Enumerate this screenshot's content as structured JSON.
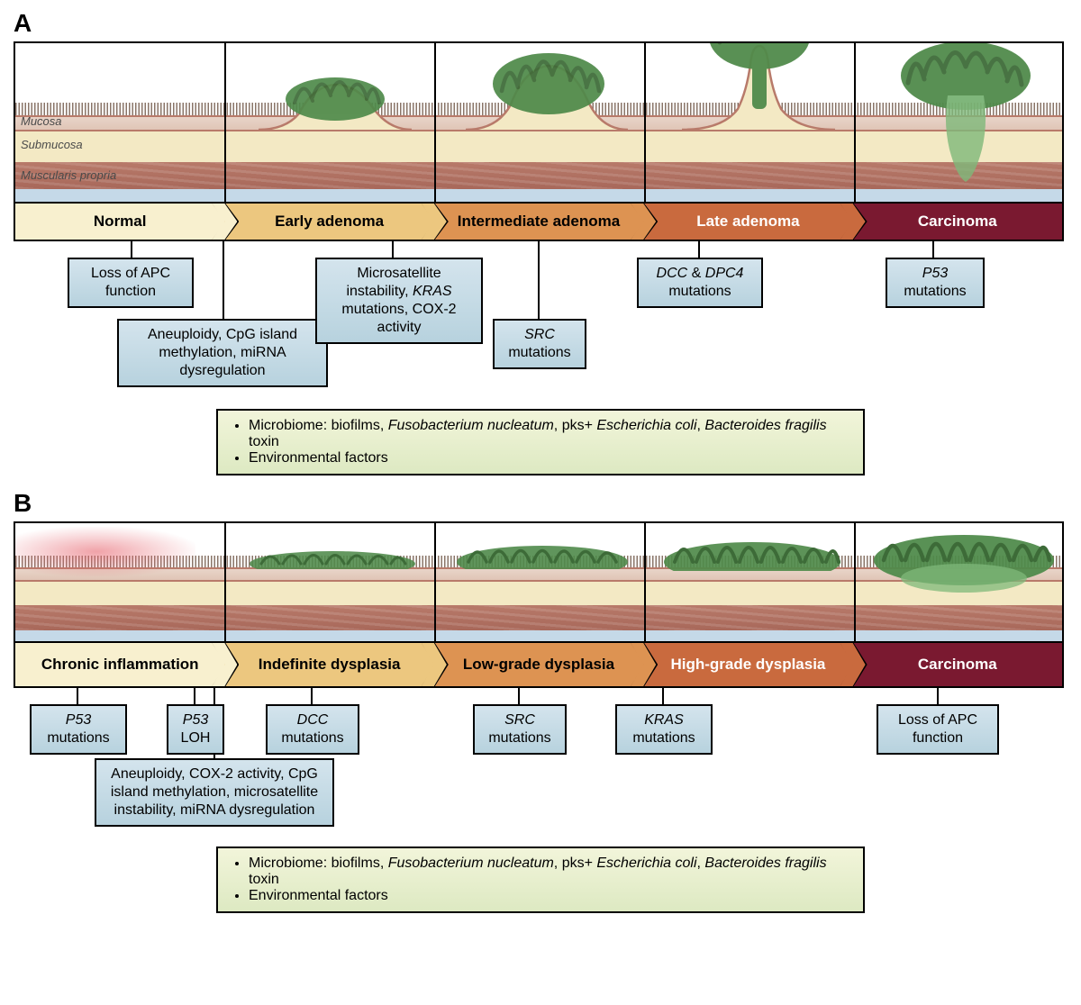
{
  "colors": {
    "stage1": "#f8f0cf",
    "stage2": "#ecc77f",
    "stage3": "#dd9352",
    "stage4": "#c96a3e",
    "stage5": "#7a1930",
    "growth_fill": "#4f8a4a",
    "growth_dark": "#3d6b38",
    "box_grad_top": "#d4e4ed",
    "box_grad_bottom": "#b7d2de",
    "env_grad_top": "#f2f5da",
    "env_grad_bottom": "#dde9c2",
    "mucosa": "#e0c5b6",
    "submucosa": "#f3e9c4",
    "muscularis": "#b0705f",
    "serosa": "#c5d9e8"
  },
  "panelA": {
    "label": "A",
    "tissue_labels": {
      "mucosa": "Mucosa",
      "submucosa": "Submucosa",
      "muscularis": "Muscularis propria"
    },
    "stages": [
      {
        "label": "Normal",
        "bg": "stage1",
        "white": false
      },
      {
        "label": "Early adenoma",
        "bg": "stage2",
        "white": false
      },
      {
        "label": "Intermediate adenoma",
        "bg": "stage3",
        "white": false
      },
      {
        "label": "Late adenoma",
        "bg": "stage4",
        "white": true
      },
      {
        "label": "Carcinoma",
        "bg": "stage5",
        "white": true
      }
    ],
    "boxes": {
      "apc": "Loss of APC function",
      "aneuploidy": "Aneuploidy, CpG island methylation, miRNA dysregulation",
      "msi": "Microsatellite instability, <em>KRAS</em> mutations, COX-2 activity",
      "src": "<em>SRC</em> mutations",
      "dcc": "<em>DCC</em> & <em>DPC4</em> mutations",
      "p53": "<em>P53</em> mutations"
    },
    "env": [
      "Microbiome: biofilms, <em>Fusobacterium nucleatum</em>, pks+ <em>Escherichia coli</em>, <em>Bacteroides fragilis</em> toxin",
      "Environmental factors"
    ]
  },
  "panelB": {
    "label": "B",
    "stages": [
      {
        "label": "Chronic inflammation",
        "bg": "stage1",
        "white": false,
        "twoline": true
      },
      {
        "label": "Indefinite dysplasia",
        "bg": "stage2",
        "white": false,
        "twoline": true
      },
      {
        "label": "Low-grade dysplasia",
        "bg": "stage3",
        "white": false,
        "twoline": true
      },
      {
        "label": "High-grade dysplasia",
        "bg": "stage4",
        "white": true,
        "twoline": true
      },
      {
        "label": "Carcinoma",
        "bg": "stage5",
        "white": true
      }
    ],
    "boxes": {
      "p53m": "<em>P53</em> mutations",
      "p53loh": "<em>P53</em> LOH",
      "dcc": "<em>DCC</em> mutations",
      "src": "<em>SRC</em> mutations",
      "kras": "<em>KRAS</em> mutations",
      "apc": "Loss of APC function",
      "aneuploidy": "Aneuploidy, COX-2 activity, CpG island methylation, microsatellite instability, miRNA dysregulation"
    },
    "env": [
      "Microbiome: biofilms, <em>Fusobacterium nucleatum</em>, pks+ <em>Escherichia coli</em>, <em>Bacteroides fragilis</em> toxin",
      "Environmental factors"
    ]
  }
}
